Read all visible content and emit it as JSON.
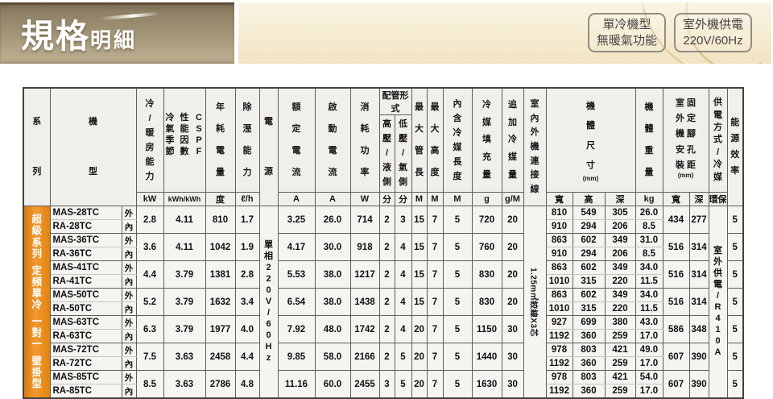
{
  "banner": {
    "title_main": "規格",
    "title_sub": "明細",
    "badges": [
      {
        "line1": "單冷機型",
        "line2": "無暖氣功能"
      },
      {
        "line1": "室外機供電",
        "line2": "220V/60Hz"
      }
    ]
  },
  "colors": {
    "series_band": "#ED8C21",
    "banner_gold": "#9A8B6C",
    "banner_cream": "#F6EDD5"
  },
  "table": {
    "headers": {
      "series": "系列",
      "model": "機型",
      "capacity": "冷/暖房能力",
      "cspf_cols": [
        "冷氣季節",
        "性能因數",
        "CSPF"
      ],
      "annual": "年耗電量",
      "dehumid": "除溼能力",
      "power": "電源",
      "rated": "額定電流",
      "start": "啟動電流",
      "consumption": "消耗功率",
      "pipe_group": "配管形式",
      "pipe_high": "高壓/液側",
      "pipe_low": "低壓/氣側",
      "max_pipe": "最大管長",
      "max_height": "最大高度",
      "inc_refrigerant": "內含冷媒長度",
      "charge": "冷媒填充量",
      "additional": "追加冷媒量",
      "wire": "室內外機連接線",
      "dims": "機體尺寸",
      "dims_mm": "(mm)",
      "weight": "機體重量",
      "foot_cols": [
        "室外機安裝",
        "固定腳孔距"
      ],
      "foot_mm": "(mm)",
      "supply": "供電方式/冷媒",
      "eff": "能源效率"
    },
    "units": {
      "capacity": "kW",
      "cspf": "kWh/kWh",
      "annual": "度",
      "dehumid": "ℓ/h",
      "rated": "A",
      "start": "A",
      "consumption": "W",
      "pipe_high": "分",
      "pipe_low": "分",
      "max_pipe": "M",
      "max_height": "M",
      "inc_refrigerant": "M",
      "charge": "g",
      "additional": "g/M",
      "dim_w": "寬",
      "dim_h": "高",
      "dim_d": "深",
      "weight": "kg",
      "foot_w": "寬",
      "foot_d": "深",
      "supply": "環保"
    },
    "tags": {
      "outdoor": "外",
      "indoor": "內"
    },
    "series_label": "超級系列 定頻單冷 一對一 壁掛型",
    "power_label": "單相220V/60Hz",
    "wire_label": "1.25m㎡絞線X3芯",
    "supply_label": "室外供電/R410A",
    "groups": [
      {
        "outdoor_model": "MAS-28TC",
        "indoor_model": "RA-28TC",
        "capacity": "2.8",
        "cspf": "4.11",
        "annual": "810",
        "dehumid": "1.7",
        "rated": "3.25",
        "start": "26.0",
        "consumption": "714",
        "pipe_high": "2",
        "pipe_low": "3",
        "max_pipe": "15",
        "max_height": "7",
        "inc_refrigerant": "5",
        "charge": "720",
        "additional": "20",
        "outdoor": {
          "w": "810",
          "h": "549",
          "d": "305",
          "kg": "26.0"
        },
        "indoor": {
          "w": "910",
          "h": "294",
          "d": "206",
          "kg": "8.5"
        },
        "foot_w": "434",
        "foot_d": "277",
        "eff": "5"
      },
      {
        "outdoor_model": "MAS-36TC",
        "indoor_model": "RA-36TC",
        "capacity": "3.6",
        "cspf": "4.11",
        "annual": "1042",
        "dehumid": "1.9",
        "rated": "4.17",
        "start": "30.0",
        "consumption": "918",
        "pipe_high": "2",
        "pipe_low": "4",
        "max_pipe": "15",
        "max_height": "7",
        "inc_refrigerant": "5",
        "charge": "760",
        "additional": "20",
        "outdoor": {
          "w": "863",
          "h": "602",
          "d": "349",
          "kg": "31.0"
        },
        "indoor": {
          "w": "910",
          "h": "294",
          "d": "206",
          "kg": "8.5"
        },
        "foot_w": "516",
        "foot_d": "314",
        "eff": "5"
      },
      {
        "outdoor_model": "MAS-41TC",
        "indoor_model": "RA-41TC",
        "capacity": "4.4",
        "cspf": "3.79",
        "annual": "1381",
        "dehumid": "2.8",
        "rated": "5.53",
        "start": "38.0",
        "consumption": "1217",
        "pipe_high": "2",
        "pipe_low": "4",
        "max_pipe": "15",
        "max_height": "7",
        "inc_refrigerant": "5",
        "charge": "830",
        "additional": "20",
        "outdoor": {
          "w": "863",
          "h": "602",
          "d": "349",
          "kg": "34.0"
        },
        "indoor": {
          "w": "1010",
          "h": "315",
          "d": "220",
          "kg": "11.5"
        },
        "foot_w": "516",
        "foot_d": "314",
        "eff": "5"
      },
      {
        "outdoor_model": "MAS-50TC",
        "indoor_model": "RA-50TC",
        "capacity": "5.2",
        "cspf": "3.79",
        "annual": "1632",
        "dehumid": "3.4",
        "rated": "6.54",
        "start": "38.0",
        "consumption": "1438",
        "pipe_high": "2",
        "pipe_low": "4",
        "max_pipe": "15",
        "max_height": "7",
        "inc_refrigerant": "5",
        "charge": "830",
        "additional": "20",
        "outdoor": {
          "w": "863",
          "h": "602",
          "d": "349",
          "kg": "34.0"
        },
        "indoor": {
          "w": "1010",
          "h": "315",
          "d": "220",
          "kg": "11.5"
        },
        "foot_w": "516",
        "foot_d": "314",
        "eff": "5"
      },
      {
        "outdoor_model": "MAS-63TC",
        "indoor_model": "RA-63TC",
        "capacity": "6.3",
        "cspf": "3.79",
        "annual": "1977",
        "dehumid": "4.0",
        "rated": "7.92",
        "start": "48.0",
        "consumption": "1742",
        "pipe_high": "2",
        "pipe_low": "4",
        "max_pipe": "20",
        "max_height": "7",
        "inc_refrigerant": "5",
        "charge": "1150",
        "additional": "30",
        "outdoor": {
          "w": "927",
          "h": "699",
          "d": "380",
          "kg": "43.0"
        },
        "indoor": {
          "w": "1192",
          "h": "360",
          "d": "259",
          "kg": "17.0"
        },
        "foot_w": "586",
        "foot_d": "348",
        "eff": "5"
      },
      {
        "outdoor_model": "MAS-72TC",
        "indoor_model": "RA-72TC",
        "capacity": "7.5",
        "cspf": "3.63",
        "annual": "2458",
        "dehumid": "4.4",
        "rated": "9.85",
        "start": "58.0",
        "consumption": "2166",
        "pipe_high": "2",
        "pipe_low": "5",
        "max_pipe": "20",
        "max_height": "7",
        "inc_refrigerant": "5",
        "charge": "1440",
        "additional": "30",
        "outdoor": {
          "w": "978",
          "h": "803",
          "d": "421",
          "kg": "49.0"
        },
        "indoor": {
          "w": "1192",
          "h": "360",
          "d": "259",
          "kg": "17.0"
        },
        "foot_w": "607",
        "foot_d": "390",
        "eff": "5"
      },
      {
        "outdoor_model": "MAS-85TC",
        "indoor_model": "RA-85TC",
        "capacity": "8.5",
        "cspf": "3.63",
        "annual": "2786",
        "dehumid": "4.8",
        "rated": "11.16",
        "start": "60.0",
        "consumption": "2455",
        "pipe_high": "3",
        "pipe_low": "5",
        "max_pipe": "20",
        "max_height": "7",
        "inc_refrigerant": "5",
        "charge": "1630",
        "additional": "30",
        "outdoor": {
          "w": "978",
          "h": "803",
          "d": "421",
          "kg": "54.0"
        },
        "indoor": {
          "w": "1192",
          "h": "360",
          "d": "259",
          "kg": "17.0"
        },
        "foot_w": "607",
        "foot_d": "390",
        "eff": "5"
      }
    ]
  }
}
